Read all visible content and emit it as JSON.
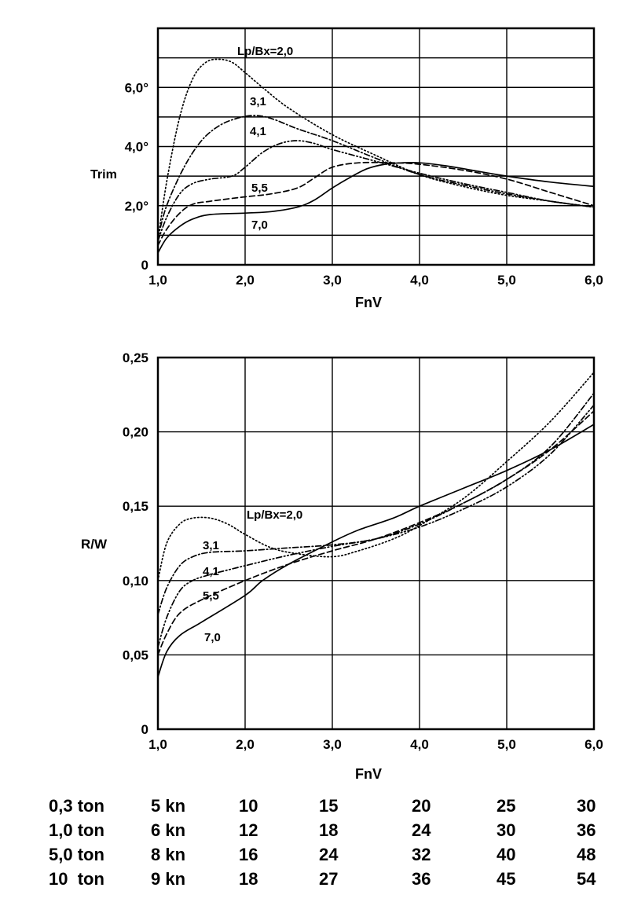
{
  "chart_data": [
    {
      "type": "line",
      "xlabel": "FnV",
      "ylabel": "Trim",
      "xlim": [
        1.0,
        6.0
      ],
      "ylim": [
        0,
        8
      ],
      "x_ticks": [
        1,
        2,
        3,
        4,
        5,
        6
      ],
      "x_tick_labels": [
        "1,0",
        "2,0",
        "3,0",
        "4,0",
        "5,0",
        "6,0"
      ],
      "y_ticks": [
        0,
        2,
        4,
        6
      ],
      "y_tick_labels": [
        "0",
        "2,0°",
        "4,0°",
        "6,0°"
      ],
      "y_grid": [
        0,
        1,
        2,
        3,
        4,
        5,
        6,
        7,
        8
      ],
      "grid": true,
      "series": [
        {
          "name": "Lp/Bx=2,0",
          "style": "dotted",
          "points": [
            [
              1.0,
              0.8
            ],
            [
              1.1,
              2.8
            ],
            [
              1.25,
              5.0
            ],
            [
              1.4,
              6.3
            ],
            [
              1.55,
              6.85
            ],
            [
              1.7,
              6.95
            ],
            [
              1.85,
              6.85
            ],
            [
              2.0,
              6.5
            ],
            [
              2.2,
              6.0
            ],
            [
              2.5,
              5.3
            ],
            [
              3.0,
              4.4
            ],
            [
              3.5,
              3.7
            ],
            [
              4.0,
              3.05
            ],
            [
              4.5,
              2.65
            ],
            [
              5.0,
              2.35
            ],
            [
              5.5,
              2.15
            ],
            [
              6.0,
              1.95
            ]
          ]
        },
        {
          "name": "3,1",
          "style": "dashdot",
          "points": [
            [
              1.0,
              0.9
            ],
            [
              1.1,
              2.0
            ],
            [
              1.3,
              3.3
            ],
            [
              1.5,
              4.2
            ],
            [
              1.7,
              4.7
            ],
            [
              1.9,
              4.95
            ],
            [
              2.1,
              5.05
            ],
            [
              2.3,
              4.95
            ],
            [
              2.6,
              4.6
            ],
            [
              3.0,
              4.2
            ],
            [
              3.5,
              3.6
            ],
            [
              4.0,
              3.05
            ],
            [
              4.5,
              2.7
            ],
            [
              5.0,
              2.4
            ],
            [
              5.5,
              2.15
            ],
            [
              6.0,
              1.95
            ]
          ]
        },
        {
          "name": "4,1",
          "style": "dashdotdot",
          "points": [
            [
              1.0,
              0.8
            ],
            [
              1.1,
              1.6
            ],
            [
              1.25,
              2.4
            ],
            [
              1.4,
              2.75
            ],
            [
              1.6,
              2.9
            ],
            [
              1.85,
              3.0
            ],
            [
              2.0,
              3.3
            ],
            [
              2.2,
              3.8
            ],
            [
              2.4,
              4.1
            ],
            [
              2.6,
              4.2
            ],
            [
              2.8,
              4.1
            ],
            [
              3.0,
              3.9
            ],
            [
              3.5,
              3.5
            ],
            [
              4.0,
              3.1
            ],
            [
              4.5,
              2.75
            ],
            [
              5.0,
              2.45
            ],
            [
              5.5,
              2.15
            ],
            [
              6.0,
              1.95
            ]
          ]
        },
        {
          "name": "5,5",
          "style": "dashed",
          "points": [
            [
              1.0,
              0.65
            ],
            [
              1.1,
              1.2
            ],
            [
              1.25,
              1.75
            ],
            [
              1.4,
              2.05
            ],
            [
              1.6,
              2.15
            ],
            [
              2.0,
              2.3
            ],
            [
              2.3,
              2.4
            ],
            [
              2.6,
              2.6
            ],
            [
              2.8,
              2.95
            ],
            [
              3.0,
              3.3
            ],
            [
              3.3,
              3.45
            ],
            [
              3.7,
              3.45
            ],
            [
              4.0,
              3.4
            ],
            [
              4.5,
              3.2
            ],
            [
              5.0,
              2.9
            ],
            [
              5.5,
              2.45
            ],
            [
              6.0,
              2.0
            ]
          ]
        },
        {
          "name": "7,0",
          "style": "solid",
          "points": [
            [
              1.0,
              0.4
            ],
            [
              1.1,
              0.9
            ],
            [
              1.25,
              1.3
            ],
            [
              1.4,
              1.55
            ],
            [
              1.6,
              1.7
            ],
            [
              2.0,
              1.75
            ],
            [
              2.3,
              1.8
            ],
            [
              2.6,
              1.95
            ],
            [
              2.8,
              2.2
            ],
            [
              3.0,
              2.6
            ],
            [
              3.2,
              2.95
            ],
            [
              3.4,
              3.25
            ],
            [
              3.6,
              3.4
            ],
            [
              3.8,
              3.45
            ],
            [
              4.0,
              3.45
            ],
            [
              4.3,
              3.35
            ],
            [
              4.6,
              3.2
            ],
            [
              5.0,
              3.0
            ],
            [
              5.5,
              2.8
            ],
            [
              6.0,
              2.65
            ]
          ]
        }
      ]
    },
    {
      "type": "line",
      "xlabel": "FnV",
      "ylabel": "R/W",
      "xlim": [
        1.0,
        6.0
      ],
      "ylim": [
        0,
        0.25
      ],
      "x_ticks": [
        1,
        2,
        3,
        4,
        5,
        6
      ],
      "x_tick_labels": [
        "1,0",
        "2,0",
        "3,0",
        "4,0",
        "5,0",
        "6,0"
      ],
      "y_ticks": [
        0,
        0.05,
        0.1,
        0.15,
        0.2,
        0.25
      ],
      "y_tick_labels": [
        "0",
        "0,05",
        "0,10",
        "0,15",
        "0,20",
        "0,25"
      ],
      "grid": true,
      "series": [
        {
          "name": "Lp/Bx=2,0",
          "style": "dotted",
          "points": [
            [
              1.0,
              0.1
            ],
            [
              1.1,
              0.125
            ],
            [
              1.25,
              0.138
            ],
            [
              1.4,
              0.142
            ],
            [
              1.6,
              0.142
            ],
            [
              1.8,
              0.138
            ],
            [
              2.0,
              0.131
            ],
            [
              2.3,
              0.122
            ],
            [
              2.6,
              0.118
            ],
            [
              3.0,
              0.116
            ],
            [
              3.3,
              0.12
            ],
            [
              3.7,
              0.128
            ],
            [
              4.0,
              0.137
            ],
            [
              4.5,
              0.155
            ],
            [
              5.0,
              0.18
            ],
            [
              5.5,
              0.207
            ],
            [
              6.0,
              0.24
            ]
          ]
        },
        {
          "name": "3,1",
          "style": "dashdot",
          "points": [
            [
              1.0,
              0.077
            ],
            [
              1.1,
              0.095
            ],
            [
              1.25,
              0.11
            ],
            [
              1.4,
              0.116
            ],
            [
              1.6,
              0.119
            ],
            [
              2.0,
              0.12
            ],
            [
              2.5,
              0.122
            ],
            [
              3.0,
              0.124
            ],
            [
              3.5,
              0.128
            ],
            [
              4.0,
              0.138
            ],
            [
              4.5,
              0.152
            ],
            [
              5.0,
              0.168
            ],
            [
              5.5,
              0.19
            ],
            [
              6.0,
              0.226
            ]
          ]
        },
        {
          "name": "4,1",
          "style": "dashdotdot",
          "points": [
            [
              1.0,
              0.055
            ],
            [
              1.1,
              0.075
            ],
            [
              1.25,
              0.093
            ],
            [
              1.4,
              0.1
            ],
            [
              1.6,
              0.104
            ],
            [
              2.0,
              0.11
            ],
            [
              2.5,
              0.117
            ],
            [
              3.0,
              0.123
            ],
            [
              3.5,
              0.128
            ],
            [
              4.0,
              0.136
            ],
            [
              4.5,
              0.148
            ],
            [
              5.0,
              0.163
            ],
            [
              5.5,
              0.185
            ],
            [
              6.0,
              0.218
            ]
          ]
        },
        {
          "name": "5,5",
          "style": "dashed",
          "points": [
            [
              1.0,
              0.05
            ],
            [
              1.1,
              0.064
            ],
            [
              1.25,
              0.078
            ],
            [
              1.5,
              0.087
            ],
            [
              2.0,
              0.1
            ],
            [
              2.5,
              0.111
            ],
            [
              3.0,
              0.12
            ],
            [
              3.5,
              0.128
            ],
            [
              4.0,
              0.139
            ],
            [
              4.5,
              0.152
            ],
            [
              5.0,
              0.168
            ],
            [
              5.5,
              0.188
            ],
            [
              6.0,
              0.214
            ]
          ]
        },
        {
          "name": "7,0",
          "style": "solid",
          "points": [
            [
              1.0,
              0.035
            ],
            [
              1.1,
              0.052
            ],
            [
              1.25,
              0.063
            ],
            [
              1.5,
              0.072
            ],
            [
              2.0,
              0.09
            ],
            [
              2.2,
              0.1
            ],
            [
              2.5,
              0.111
            ],
            [
              3.0,
              0.126
            ],
            [
              3.3,
              0.134
            ],
            [
              3.7,
              0.142
            ],
            [
              4.0,
              0.15
            ],
            [
              4.5,
              0.162
            ],
            [
              5.0,
              0.174
            ],
            [
              5.5,
              0.188
            ],
            [
              6.0,
              0.205
            ]
          ]
        }
      ]
    }
  ],
  "labels": {
    "top": {
      "lead": "Lp/Bx=2,0",
      "curves": [
        "3,1",
        "4,1",
        "5,5",
        "7,0"
      ]
    },
    "bottom": {
      "lead": "Lp/Bx=2,0",
      "curves": [
        "3,1",
        "4,1",
        "5,5",
        "7,0"
      ]
    }
  },
  "speed_table": [
    [
      "0,3 ton",
      "5 kn",
      "10",
      "15",
      "20",
      "25",
      "30"
    ],
    [
      "1,0 ton",
      "6 kn",
      "12",
      "18",
      "24",
      "30",
      "36"
    ],
    [
      "5,0 ton",
      "8 kn",
      "16",
      "24",
      "32",
      "40",
      "48"
    ],
    [
      "10  ton",
      "9 kn",
      "18",
      "27",
      "36",
      "45",
      "54"
    ]
  ]
}
